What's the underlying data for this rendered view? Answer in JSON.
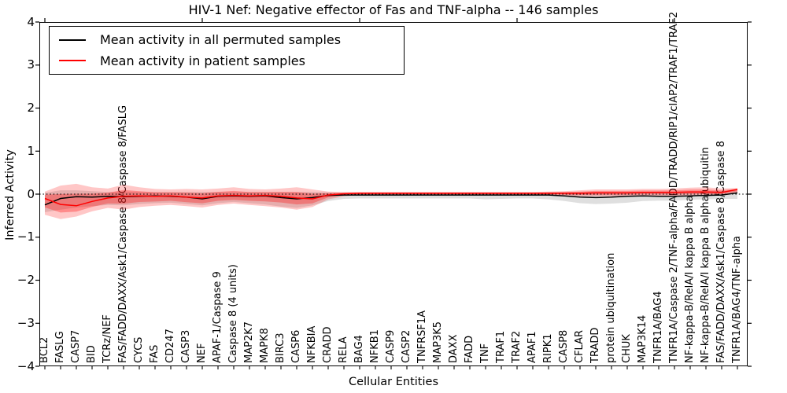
{
  "figure": {
    "background": "#ffffff"
  },
  "chart_data": {
    "type": "line",
    "title": "HIV-1 Nef: Negative effector of Fas and TNF-alpha -- 146 samples",
    "sample_count": 146,
    "xlabel": "Cellular Entities",
    "ylabel": "Inferred Activity",
    "ylim": [
      -4,
      4
    ],
    "yticks": [
      4,
      3,
      2,
      1,
      0,
      -1,
      -2,
      -3,
      -4
    ],
    "yticklabels": [
      "4",
      "3",
      "2",
      "1",
      "0",
      "−1",
      "−2",
      "−3",
      "−4"
    ],
    "xtick_rotation": 90,
    "grid": false,
    "legend_position": "upper left",
    "top_tick_indices": [
      0,
      10,
      20,
      30,
      40
    ],
    "zero_line": {
      "style": "dotted",
      "color": "#000000",
      "y": 0
    },
    "categories": [
      "BCL2",
      "FASLG",
      "CASP7",
      "BID",
      "TCRz/NEF",
      "FAS/FADD/DAXX/Ask1/Caspase 8/Caspase 8/FASLG",
      "CYCS",
      "FAS",
      "CD247",
      "CASP3",
      "NEF",
      "APAF-1/Caspase 9",
      "Caspase 8 (4 units)",
      "MAP2K7",
      "MAPK8",
      "BIRC3",
      "CASP6",
      "NFKBIA",
      "CRADD",
      "RELA",
      "BAG4",
      "NFKB1",
      "CASP9",
      "CASP2",
      "TNFRSF1A",
      "MAP3K5",
      "DAXX",
      "FADD",
      "TNF",
      "TRAF1",
      "TRAF2",
      "APAF1",
      "RIPK1",
      "CASP8",
      "CFLAR",
      "TRADD",
      "protein ubiquitination",
      "CHUK",
      "MAP3K14",
      "TNFR1A/BAG4",
      "TNFR1A/Caspase 2/TNF-alpha/FADD/TRADD/RIP1/cIAP2/TRAF1/TRAF2",
      "NF-kappa-B/RelA/I kappa B alpha",
      "NF-kappa-B/RelA/I kappa B alpha/ubiquitin",
      "FAS/FADD/DAXX/Ask1/Caspase 8/Caspase 8",
      "TNFR1A/BAG4/TNF-alpha"
    ],
    "series": [
      {
        "name": "Mean activity in all permuted samples",
        "type": "line",
        "color": "#000000",
        "values": [
          -0.25,
          -0.1,
          -0.06,
          -0.07,
          -0.05,
          -0.06,
          -0.05,
          -0.04,
          -0.05,
          -0.07,
          -0.11,
          -0.05,
          -0.04,
          -0.05,
          -0.04,
          -0.08,
          -0.11,
          -0.08,
          -0.03,
          -0.02,
          -0.02,
          -0.02,
          -0.02,
          -0.02,
          -0.02,
          -0.02,
          -0.02,
          -0.02,
          -0.02,
          -0.02,
          -0.02,
          -0.02,
          -0.02,
          -0.04,
          -0.07,
          -0.08,
          -0.07,
          -0.05,
          -0.04,
          -0.05,
          -0.05,
          -0.04,
          -0.03,
          -0.02,
          0.03
        ]
      },
      {
        "name": "Mean activity in patient samples",
        "type": "line",
        "color": "#ff0000",
        "values": [
          -0.1,
          -0.24,
          -0.27,
          -0.17,
          -0.09,
          -0.05,
          -0.04,
          -0.05,
          -0.04,
          -0.07,
          -0.09,
          -0.04,
          -0.03,
          -0.04,
          -0.03,
          -0.05,
          -0.09,
          -0.11,
          -0.02,
          0.01,
          0.02,
          0.02,
          0.02,
          0.02,
          0.02,
          0.02,
          0.02,
          0.02,
          0.02,
          0.02,
          0.02,
          0.02,
          0.02,
          0.02,
          0.02,
          0.03,
          0.03,
          0.03,
          0.04,
          0.04,
          0.04,
          0.05,
          0.05,
          0.04,
          0.11
        ]
      },
      {
        "name": "permuted samples range band",
        "type": "band",
        "color": "#8c8c8c",
        "opacity": 0.28,
        "layered": false,
        "mean_index": 0,
        "hi": [
          0.03,
          0.09,
          0.09,
          0.07,
          0.05,
          0.06,
          0.05,
          0.05,
          0.05,
          0.05,
          0.05,
          0.05,
          0.05,
          0.05,
          0.05,
          0.05,
          0.05,
          0.05,
          0.04,
          0.03,
          0.03,
          0.03,
          0.03,
          0.03,
          0.03,
          0.03,
          0.03,
          0.03,
          0.03,
          0.03,
          0.03,
          0.03,
          0.04,
          0.04,
          0.04,
          0.05,
          0.05,
          0.05,
          0.05,
          0.06,
          0.06,
          0.07,
          0.07,
          0.07,
          0.09
        ],
        "lo": [
          -0.42,
          -0.36,
          -0.31,
          -0.28,
          -0.25,
          -0.26,
          -0.23,
          -0.21,
          -0.2,
          -0.23,
          -0.26,
          -0.21,
          -0.18,
          -0.21,
          -0.24,
          -0.29,
          -0.32,
          -0.26,
          -0.16,
          -0.11,
          -0.1,
          -0.1,
          -0.1,
          -0.1,
          -0.1,
          -0.1,
          -0.1,
          -0.1,
          -0.12,
          -0.11,
          -0.1,
          -0.1,
          -0.12,
          -0.16,
          -0.21,
          -0.23,
          -0.22,
          -0.2,
          -0.16,
          -0.15,
          -0.15,
          -0.13,
          -0.12,
          -0.11,
          -0.11
        ]
      },
      {
        "name": "patient samples range band",
        "type": "band",
        "color": "#ff0000",
        "opacity": 0.22,
        "layered": true,
        "mean_index": 1,
        "hi": [
          0.06,
          0.2,
          0.24,
          0.16,
          0.13,
          0.22,
          0.16,
          0.12,
          0.11,
          0.12,
          0.11,
          0.13,
          0.16,
          0.12,
          0.11,
          0.13,
          0.16,
          0.11,
          0.06,
          0.05,
          0.05,
          0.05,
          0.05,
          0.05,
          0.05,
          0.05,
          0.05,
          0.05,
          0.05,
          0.05,
          0.05,
          0.05,
          0.06,
          0.07,
          0.09,
          0.11,
          0.11,
          0.11,
          0.12,
          0.12,
          0.13,
          0.15,
          0.16,
          0.13,
          0.14
        ],
        "lo": [
          -0.48,
          -0.58,
          -0.52,
          -0.4,
          -0.32,
          -0.36,
          -0.3,
          -0.27,
          -0.25,
          -0.28,
          -0.31,
          -0.25,
          -0.22,
          -0.25,
          -0.28,
          -0.31,
          -0.36,
          -0.3,
          -0.12,
          -0.05,
          -0.02,
          -0.02,
          -0.02,
          -0.02,
          -0.02,
          -0.02,
          -0.02,
          -0.02,
          -0.02,
          -0.02,
          -0.02,
          -0.02,
          -0.03,
          -0.04,
          -0.05,
          -0.05,
          -0.05,
          -0.05,
          -0.04,
          -0.04,
          -0.04,
          -0.04,
          -0.04,
          -0.03,
          0.03
        ]
      }
    ]
  }
}
